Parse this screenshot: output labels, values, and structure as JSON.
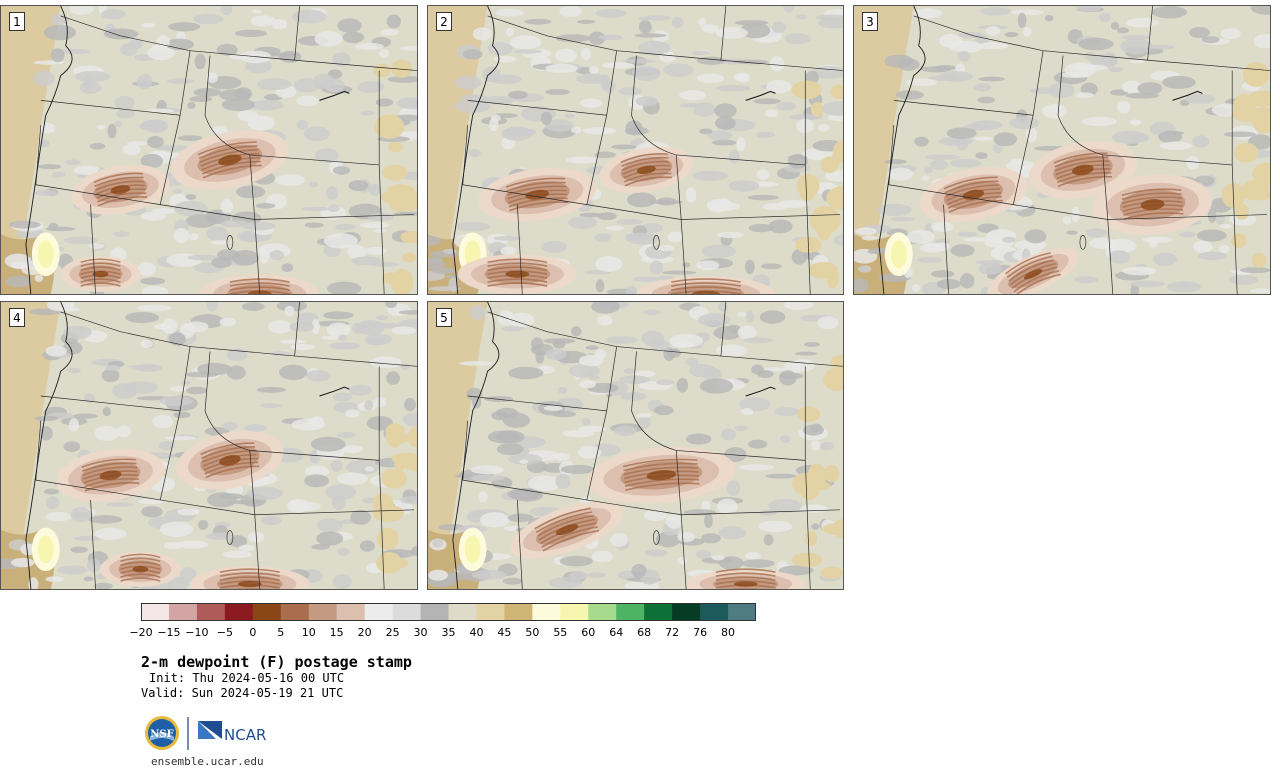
{
  "panels": [
    {
      "label": "1"
    },
    {
      "label": "2"
    },
    {
      "label": "3"
    },
    {
      "label": "4"
    },
    {
      "label": "5"
    }
  ],
  "colorbar": {
    "colors": [
      "#f3e6e6",
      "#d4a3a3",
      "#b05a5a",
      "#8b1a1f",
      "#8a4616",
      "#a86e4e",
      "#c49a82",
      "#dcbfae",
      "#ececec",
      "#dcdcdc",
      "#b4b4b4",
      "#dedcc9",
      "#e2d2a4",
      "#cfb676",
      "#fefbdc",
      "#f6f6b0",
      "#a6da8c",
      "#4cb464",
      "#0c7038",
      "#063c24",
      "#1c5a5c",
      "#4e7c80"
    ],
    "tick_labels": [
      "−20",
      "−15",
      "−10",
      "−5",
      "0",
      "5",
      "10",
      "15",
      "20",
      "25",
      "30",
      "35",
      "40",
      "45",
      "50",
      "55",
      "60",
      "64",
      "68",
      "72",
      "76",
      "80"
    ]
  },
  "title": "2-m dewpoint (F) postage stamp",
  "init": "Init: Thu 2024-05-16 00 UTC",
  "valid": "Valid: Sun 2024-05-19 21 UTC",
  "logos": {
    "nsf": "NSF",
    "ncar": "NCAR"
  },
  "site": "ensemble.ucar.edu"
}
